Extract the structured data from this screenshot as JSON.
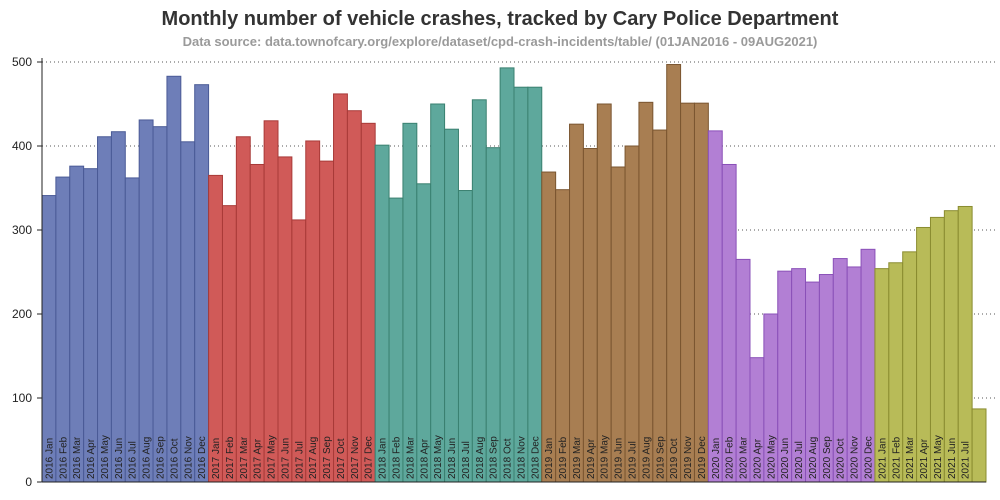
{
  "chart_data": {
    "type": "bar",
    "title": "Monthly number of vehicle crashes, tracked by Cary Police Department",
    "subtitle": "Data source: data.townofcary.org/explore/dataset/cpd-crash-incidents/table/ (01JAN2016 - 09AUG2021)",
    "xlabel": "",
    "ylabel": "",
    "ylim": [
      0,
      500
    ],
    "yticks": [
      0,
      100,
      200,
      300,
      400,
      500
    ],
    "grid": "horizontal-dotted",
    "series": [
      {
        "year": "2016",
        "color": "#6e7eb8",
        "edge": "#4a5a96",
        "labels": [
          "2016 Jan",
          "2016 Feb",
          "2016 Mar",
          "2016 Apr",
          "2016 May",
          "2016 Jun",
          "2016 Jul",
          "2016 Aug",
          "2016 Sep",
          "2016 Oct",
          "2016 Nov",
          "2016 Dec"
        ],
        "values": [
          341,
          363,
          376,
          373,
          411,
          417,
          362,
          431,
          423,
          483,
          405,
          473
        ]
      },
      {
        "year": "2017",
        "color": "#d05a58",
        "edge": "#a83a38",
        "labels": [
          "2017 Jan",
          "2017 Feb",
          "2017 Mar",
          "2017 Apr",
          "2017 May",
          "2017 Jun",
          "2017 Jul",
          "2017 Aug",
          "2017 Sep",
          "2017 Oct",
          "2017 Nov",
          "2017 Dec"
        ],
        "values": [
          365,
          329,
          411,
          378,
          430,
          387,
          312,
          406,
          382,
          462,
          442,
          427
        ]
      },
      {
        "year": "2018",
        "color": "#5ea89c",
        "edge": "#3a8070",
        "labels": [
          "2018 Jan",
          "2018 Feb",
          "2018 Mar",
          "2018 Apr",
          "2018 May",
          "2018 Jun",
          "2018 Jul",
          "2018 Aug",
          "2018 Sep",
          "2018 Oct",
          "2018 Nov",
          "2018 Dec"
        ],
        "values": [
          401,
          338,
          427,
          355,
          450,
          420,
          347,
          455,
          398,
          493,
          470,
          470
        ]
      },
      {
        "year": "2019",
        "color": "#a87e52",
        "edge": "#7a5530",
        "labels": [
          "2019 Jan",
          "2019 Feb",
          "2019 Mar",
          "2019 Apr",
          "2019 May",
          "2019 Jun",
          "2019 Jul",
          "2019 Aug",
          "2019 Sep",
          "2019 Oct",
          "2019 Nov",
          "2019 Dec"
        ],
        "values": [
          369,
          348,
          426,
          397,
          450,
          375,
          400,
          452,
          419,
          497,
          451,
          451
        ]
      },
      {
        "year": "2020",
        "color": "#b27fd4",
        "edge": "#8a50b8",
        "labels": [
          "2020 Jan",
          "2020 Feb",
          "2020 Mar",
          "2020 Apr",
          "2020 May",
          "2020 Jun",
          "2020 Jul",
          "2020 Aug",
          "2020 Sep",
          "2020 Oct",
          "2020 Nov",
          "2020 Dec"
        ],
        "values": [
          418,
          378,
          265,
          148,
          200,
          251,
          254,
          238,
          247,
          266,
          256,
          277
        ]
      },
      {
        "year": "2021",
        "color": "#b8bb58",
        "edge": "#8a8c30",
        "labels": [
          "2021 Jan",
          "2021 Feb",
          "2021 Mar",
          "2021 Apr",
          "2021 May",
          "2021 Jun",
          "2021 Jul",
          ""
        ],
        "values": [
          254,
          261,
          274,
          303,
          315,
          323,
          328,
          87
        ]
      }
    ]
  }
}
